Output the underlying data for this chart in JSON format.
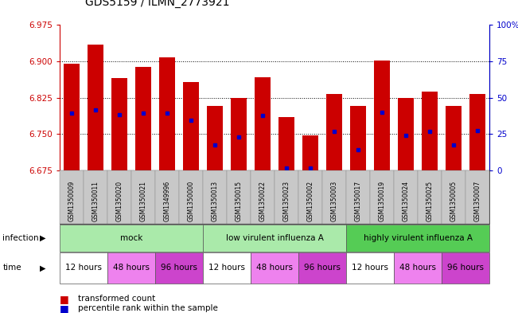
{
  "title": "GDS5159 / ILMN_2773921",
  "samples": [
    "GSM1350009",
    "GSM1350011",
    "GSM1350020",
    "GSM1350021",
    "GSM1349996",
    "GSM1350000",
    "GSM1350013",
    "GSM1350015",
    "GSM1350022",
    "GSM1350023",
    "GSM1350002",
    "GSM1350003",
    "GSM1350017",
    "GSM1350019",
    "GSM1350024",
    "GSM1350025",
    "GSM1350005",
    "GSM1350007"
  ],
  "bar_values": [
    6.895,
    6.935,
    6.865,
    6.888,
    6.908,
    6.858,
    6.808,
    6.825,
    6.868,
    6.785,
    6.748,
    6.833,
    6.808,
    6.902,
    6.825,
    6.838,
    6.808,
    6.833
  ],
  "percentile_values": [
    6.793,
    6.8,
    6.79,
    6.793,
    6.793,
    6.778,
    6.728,
    6.745,
    6.788,
    6.68,
    6.68,
    6.755,
    6.718,
    6.795,
    6.748,
    6.755,
    6.728,
    6.758
  ],
  "ylim": [
    6.675,
    6.975
  ],
  "yticks": [
    6.675,
    6.75,
    6.825,
    6.9,
    6.975
  ],
  "right_ytick_percents": [
    0,
    25,
    50,
    75,
    100
  ],
  "right_ytick_labels": [
    "0",
    "25",
    "50",
    "75",
    "100%"
  ],
  "bar_color": "#cc0000",
  "percentile_color": "#0000cc",
  "bar_width": 0.65,
  "background_color": "#ffffff",
  "plot_bg_color": "#ffffff",
  "grid_color": "#000000",
  "left_tick_color": "#cc0000",
  "right_tick_color": "#0000cc",
  "xtick_bg_color": "#c8c8c8",
  "infection_defs": [
    {
      "label": "mock",
      "start": 0,
      "end": 6,
      "color": "#aaeaaa"
    },
    {
      "label": "low virulent influenza A",
      "start": 6,
      "end": 12,
      "color": "#aaeaaa"
    },
    {
      "label": "highly virulent influenza A",
      "start": 12,
      "end": 18,
      "color": "#55cc55"
    }
  ],
  "time_defs": [
    {
      "label": "12 hours",
      "start": 0,
      "end": 2,
      "color": "#ffffff"
    },
    {
      "label": "48 hours",
      "start": 2,
      "end": 4,
      "color": "#ee82ee"
    },
    {
      "label": "96 hours",
      "start": 4,
      "end": 6,
      "color": "#cc44cc"
    },
    {
      "label": "12 hours",
      "start": 6,
      "end": 8,
      "color": "#ffffff"
    },
    {
      "label": "48 hours",
      "start": 8,
      "end": 10,
      "color": "#ee82ee"
    },
    {
      "label": "96 hours",
      "start": 10,
      "end": 12,
      "color": "#cc44cc"
    },
    {
      "label": "12 hours",
      "start": 12,
      "end": 14,
      "color": "#ffffff"
    },
    {
      "label": "48 hours",
      "start": 14,
      "end": 16,
      "color": "#ee82ee"
    },
    {
      "label": "96 hours",
      "start": 16,
      "end": 18,
      "color": "#cc44cc"
    }
  ]
}
